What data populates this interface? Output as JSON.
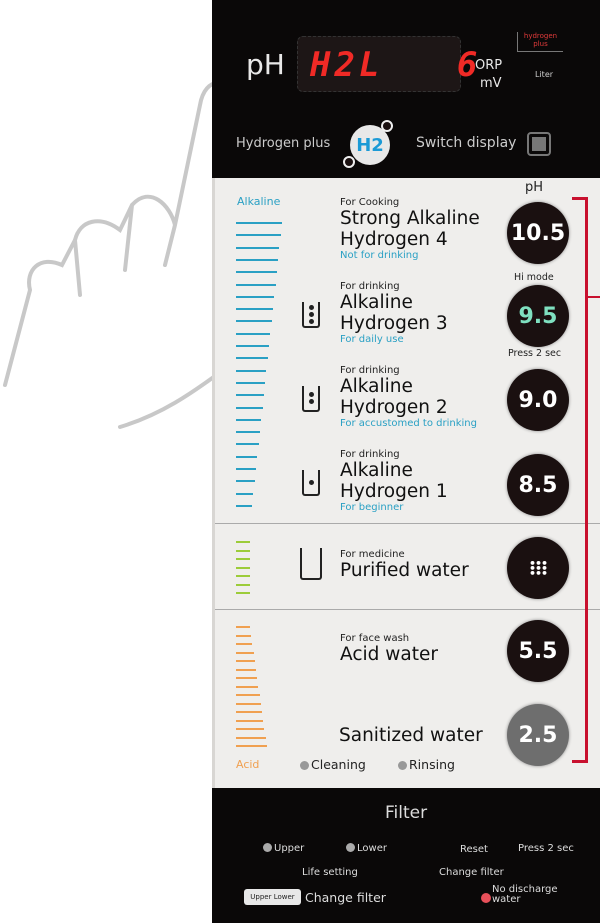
{
  "display": {
    "ph_label": "pH",
    "led_text": "H2L   6",
    "orp_label": "ORP",
    "mv_label": "mV",
    "liter_label": "Liter",
    "badge_line1": "hydrogen",
    "badge_line2": "plus"
  },
  "controls": {
    "hydrogen_plus": "Hydrogen plus",
    "h2_logo": "H2",
    "switch_display": "Switch display"
  },
  "scale": {
    "alkaline": "Alkaline",
    "acid": "Acid",
    "ph_header": "pH",
    "hi_mode": "Hi mode",
    "press_2_sec": "Press 2 sec"
  },
  "modes": [
    {
      "sub": "For Cooking",
      "title1": "Strong Alkaline",
      "title2": "Hydrogen 4",
      "note": "Not for drinking",
      "ph": "10.5",
      "dots": 0
    },
    {
      "sub": "For drinking",
      "title1": "Alkaline",
      "title2": "Hydrogen 3",
      "note": "For daily use",
      "ph": "9.5",
      "dots": 3
    },
    {
      "sub": "For drinking",
      "title1": "Alkaline",
      "title2": "Hydrogen 2",
      "note": "For accustomed to drinking",
      "ph": "9.0",
      "dots": 2
    },
    {
      "sub": "For drinking",
      "title1": "Alkaline",
      "title2": "Hydrogen 1",
      "note": "For beginner",
      "ph": "8.5",
      "dots": 1
    },
    {
      "sub": "For medicine",
      "title1": "Purified water",
      "ph_icon": "grid-icon"
    },
    {
      "sub": "For face wash",
      "title1": "Acid water",
      "ph": "5.5"
    },
    {
      "title1": "Sanitized water",
      "ph": "2.5"
    }
  ],
  "cleaning": {
    "cleaning": "Cleaning",
    "rinsing": "Rinsing"
  },
  "filter": {
    "title": "Filter",
    "upper": "Upper",
    "lower": "Lower",
    "reset": "Reset",
    "press_2_sec": "Press 2 sec",
    "life_setting": "Life setting",
    "change_filter_top": "Change filter",
    "button": "Upper Lower",
    "change_filter": "Change filter",
    "no_discharge1": "No discharge",
    "no_discharge2": "water"
  },
  "colors": {
    "led": "#f02a26",
    "alkaline": "#2aa0c4",
    "neutral": "#9ccc3a",
    "acid": "#f0a050",
    "bracket": "#c8102e",
    "hi_mode_value": "#7fe0c0"
  }
}
